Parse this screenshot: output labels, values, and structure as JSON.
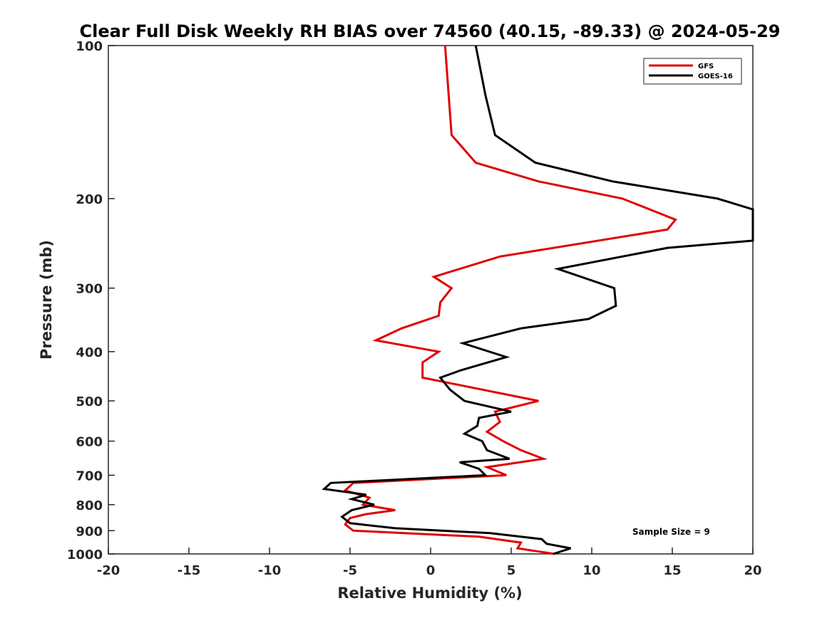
{
  "chart_data": {
    "type": "line",
    "title": "Clear Full Disk Weekly RH BIAS over 74560 (40.15, -89.33) @ 2024-05-29",
    "xlabel": "Relative Humidity (%)",
    "ylabel": "Pressure (mb)",
    "xlim": [
      -20,
      20
    ],
    "ylim": [
      100,
      1000
    ],
    "yscale": "log",
    "y_reversed": true,
    "xticks": [
      -20,
      -15,
      -10,
      -5,
      0,
      5,
      10,
      15,
      20
    ],
    "yticks": [
      100,
      200,
      300,
      400,
      500,
      600,
      700,
      800,
      900,
      1000
    ],
    "grid": false,
    "legend_position": "top-right",
    "annotation": "Sample Size = 9",
    "series": [
      {
        "name": "GFS",
        "color": "#e00000",
        "points": [
          [
            0.9,
            100
          ],
          [
            1.3,
            150
          ],
          [
            2.8,
            170
          ],
          [
            6.7,
            185
          ],
          [
            11.9,
            200
          ],
          [
            15.2,
            220
          ],
          [
            14.7,
            230
          ],
          [
            4.3,
            260
          ],
          [
            0.2,
            285
          ],
          [
            1.3,
            300
          ],
          [
            0.6,
            320
          ],
          [
            0.5,
            340
          ],
          [
            -1.8,
            360
          ],
          [
            -3.4,
            380
          ],
          [
            0.5,
            400
          ],
          [
            -0.5,
            420
          ],
          [
            -0.5,
            450
          ],
          [
            6.7,
            500
          ],
          [
            4.0,
            525
          ],
          [
            4.3,
            550
          ],
          [
            3.5,
            575
          ],
          [
            4.5,
            600
          ],
          [
            5.6,
            625
          ],
          [
            7.0,
            650
          ],
          [
            3.5,
            675
          ],
          [
            4.7,
            700
          ],
          [
            -4.8,
            725
          ],
          [
            -5.3,
            750
          ],
          [
            -3.8,
            775
          ],
          [
            -4.2,
            800
          ],
          [
            -2.2,
            820
          ],
          [
            -4.0,
            835
          ],
          [
            -5.0,
            850
          ],
          [
            -5.3,
            875
          ],
          [
            -4.8,
            900
          ],
          [
            3.0,
            925
          ],
          [
            5.6,
            950
          ],
          [
            5.4,
            975
          ],
          [
            7.7,
            1000
          ]
        ]
      },
      {
        "name": "GOES-16",
        "color": "#000000",
        "points": [
          [
            2.8,
            100
          ],
          [
            3.4,
            125
          ],
          [
            4.0,
            150
          ],
          [
            6.5,
            170
          ],
          [
            11.3,
            185
          ],
          [
            17.8,
            200
          ],
          [
            20.0,
            210
          ],
          [
            20.0,
            242
          ],
          [
            14.7,
            250
          ],
          [
            7.9,
            275
          ],
          [
            11.4,
            300
          ],
          [
            11.5,
            325
          ],
          [
            9.8,
            345
          ],
          [
            5.6,
            360
          ],
          [
            2.0,
            385
          ],
          [
            4.7,
            410
          ],
          [
            1.9,
            435
          ],
          [
            0.6,
            450
          ],
          [
            1.2,
            475
          ],
          [
            2.1,
            500
          ],
          [
            5.0,
            525
          ],
          [
            3.0,
            540
          ],
          [
            2.9,
            560
          ],
          [
            2.1,
            580
          ],
          [
            3.2,
            600
          ],
          [
            3.5,
            625
          ],
          [
            4.9,
            650
          ],
          [
            1.8,
            660
          ],
          [
            3.0,
            680
          ],
          [
            3.4,
            700
          ],
          [
            -6.2,
            725
          ],
          [
            -6.6,
            745
          ],
          [
            -4.0,
            765
          ],
          [
            -4.9,
            780
          ],
          [
            -3.5,
            800
          ],
          [
            -4.9,
            820
          ],
          [
            -5.5,
            845
          ],
          [
            -5.0,
            870
          ],
          [
            -2.2,
            890
          ],
          [
            3.7,
            910
          ],
          [
            6.9,
            935
          ],
          [
            7.2,
            955
          ],
          [
            8.7,
            975
          ],
          [
            7.6,
            1000
          ]
        ]
      }
    ]
  }
}
